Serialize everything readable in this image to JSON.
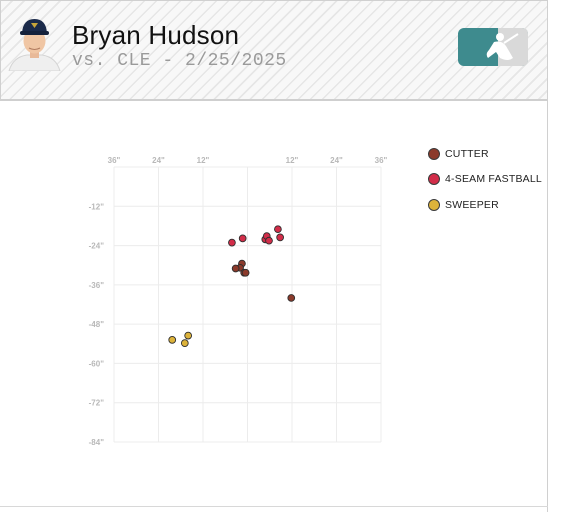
{
  "header": {
    "player_name": "Bryan Hudson",
    "game_line": "vs. CLE - 2/25/2025"
  },
  "colors": {
    "CUTTER": "#8b3a2b",
    "4-SEAM FASTBALL": "#d22d49",
    "SWEEPER": "#ddb33a"
  },
  "chart_data": {
    "type": "scatter",
    "x_ticks": [
      "36\"",
      "24\"",
      "12\"",
      "",
      "12\"",
      "24\"",
      "36\""
    ],
    "x_tick_values": [
      -36,
      -24,
      -12,
      0,
      12,
      24,
      36
    ],
    "y_ticks": [
      "-12\"",
      "-24\"",
      "-36\"",
      "-48\"",
      "-60\"",
      "-72\"",
      "-84\""
    ],
    "y_tick_values": [
      -12,
      -24,
      -36,
      -48,
      -60,
      -72,
      -84
    ],
    "xlim": [
      -36,
      36
    ],
    "ylim": [
      -84,
      0
    ],
    "grid": true,
    "legend_position": "right",
    "series": [
      {
        "name": "CUTTER",
        "points": [
          [
            -1.5,
            -29.5
          ],
          [
            -2.0,
            -30.8
          ],
          [
            -0.9,
            -32.3
          ],
          [
            -0.5,
            -32.3
          ],
          [
            -3.2,
            -31.0
          ],
          [
            11.8,
            -40.0
          ]
        ]
      },
      {
        "name": "4-SEAM FASTBALL",
        "points": [
          [
            -1.3,
            -21.8
          ],
          [
            -4.2,
            -23.1
          ],
          [
            4.8,
            -22.1
          ],
          [
            5.2,
            -21.1
          ],
          [
            5.8,
            -22.5
          ],
          [
            8.2,
            -19.0
          ],
          [
            8.8,
            -21.5
          ]
        ]
      },
      {
        "name": "SWEEPER",
        "points": [
          [
            -16.0,
            -51.5
          ],
          [
            -16.9,
            -53.8
          ],
          [
            -20.3,
            -52.8
          ]
        ]
      }
    ]
  }
}
